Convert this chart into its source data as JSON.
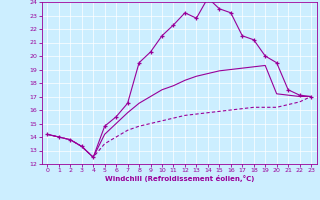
{
  "xlabel": "Windchill (Refroidissement éolien,°C)",
  "bg_color": "#cceeff",
  "line_color": "#990099",
  "xlim": [
    -0.5,
    23.5
  ],
  "ylim": [
    12,
    24
  ],
  "xticks": [
    0,
    1,
    2,
    3,
    4,
    5,
    6,
    7,
    8,
    9,
    10,
    11,
    12,
    13,
    14,
    15,
    16,
    17,
    18,
    19,
    20,
    21,
    22,
    23
  ],
  "yticks": [
    12,
    13,
    14,
    15,
    16,
    17,
    18,
    19,
    20,
    21,
    22,
    23,
    24
  ],
  "series1_x": [
    0,
    1,
    2,
    3,
    4,
    5,
    6,
    7,
    8,
    9,
    10,
    11,
    12,
    13,
    14,
    15,
    16,
    17,
    18,
    19,
    20,
    21,
    22,
    23
  ],
  "series1_y": [
    14.2,
    14.0,
    13.8,
    13.3,
    12.5,
    14.8,
    15.5,
    16.5,
    19.5,
    20.3,
    21.5,
    22.3,
    23.2,
    22.8,
    24.3,
    23.5,
    23.2,
    21.5,
    21.2,
    20.0,
    19.5,
    17.5,
    17.1,
    17.0
  ],
  "series2_x": [
    0,
    1,
    2,
    3,
    4,
    5,
    6,
    7,
    8,
    9,
    10,
    11,
    12,
    13,
    14,
    15,
    16,
    17,
    18,
    19,
    20,
    21,
    22,
    23
  ],
  "series2_y": [
    14.2,
    14.0,
    13.8,
    13.3,
    12.5,
    14.2,
    15.0,
    15.8,
    16.5,
    17.0,
    17.5,
    17.8,
    18.2,
    18.5,
    18.7,
    18.9,
    19.0,
    19.1,
    19.2,
    19.3,
    17.2,
    17.1,
    17.0,
    17.0
  ],
  "series3_x": [
    0,
    1,
    2,
    3,
    4,
    5,
    6,
    7,
    8,
    9,
    10,
    11,
    12,
    13,
    14,
    15,
    16,
    17,
    18,
    19,
    20,
    21,
    22,
    23
  ],
  "series3_y": [
    14.2,
    14.0,
    13.8,
    13.3,
    12.5,
    13.5,
    14.0,
    14.5,
    14.8,
    15.0,
    15.2,
    15.4,
    15.6,
    15.7,
    15.8,
    15.9,
    16.0,
    16.1,
    16.2,
    16.2,
    16.2,
    16.4,
    16.6,
    17.0
  ]
}
